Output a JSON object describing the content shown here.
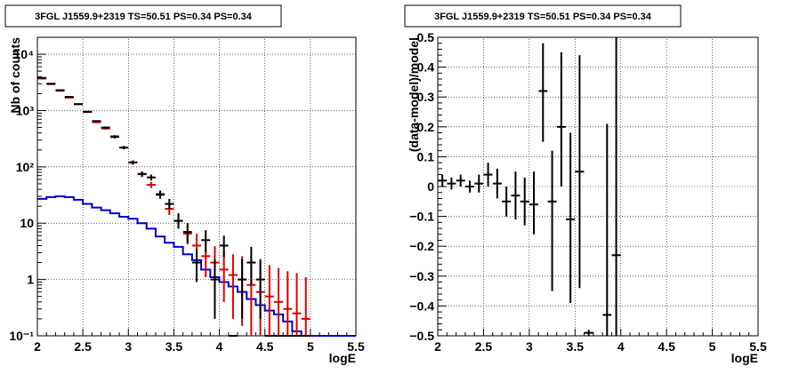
{
  "chart_data": [
    {
      "type": "scatter",
      "title": "3FGL J1559.9+2319 TS=50.51 PS=0.34 PS=0.34",
      "xlabel": "logE",
      "ylabel": "Nb of counts",
      "xlim": [
        2.0,
        5.5
      ],
      "ylim": [
        0.1,
        20000
      ],
      "yscale": "log",
      "grid": true,
      "x_ticks": [
        "2",
        "2.5",
        "3",
        "3.5",
        "4",
        "4.5",
        "5",
        "5.5"
      ],
      "y_ticks": [
        "10⁻¹",
        "1",
        "10",
        "10²",
        "10³",
        "10⁴"
      ],
      "series": [
        {
          "color": "#000000",
          "kind": "data-points",
          "x": [
            2.05,
            2.15,
            2.25,
            2.35,
            2.45,
            2.55,
            2.65,
            2.75,
            2.85,
            2.95,
            3.05,
            3.15,
            3.25,
            3.35,
            3.45,
            3.55,
            3.65,
            3.75,
            3.85,
            3.95,
            4.05,
            4.15,
            4.25,
            4.35,
            4.45,
            4.55,
            4.65,
            4.75,
            4.85,
            4.95
          ],
          "y": [
            3800,
            3000,
            2300,
            1750,
            1300,
            950,
            650,
            500,
            340,
            220,
            120,
            75,
            65,
            32,
            22,
            11,
            7,
            2,
            5,
            1,
            4,
            0.1,
            1,
            2,
            1,
            0.1,
            0.1,
            0.1,
            0.1,
            0.1
          ],
          "ylo": [
            3750,
            2950,
            2250,
            1700,
            1260,
            920,
            625,
            480,
            320,
            205,
            110,
            67,
            57,
            27,
            18,
            8,
            4.5,
            0.9,
            3,
            0.2,
            2.5,
            0.1,
            0.2,
            0.8,
            0.2,
            0.1,
            0.1,
            0.1,
            0.1,
            0.1
          ],
          "yhi": [
            3850,
            3050,
            2350,
            1800,
            1340,
            980,
            675,
            520,
            360,
            235,
            130,
            83,
            73,
            38,
            27,
            15,
            10,
            3.5,
            7.5,
            2.3,
            6,
            0.1,
            2.3,
            3.8,
            2.3,
            0.1,
            0.1,
            0.1,
            0.1,
            0.1
          ]
        },
        {
          "color": "#dd0000",
          "kind": "model-points",
          "x": [
            2.05,
            2.15,
            2.25,
            2.35,
            2.45,
            2.55,
            2.65,
            2.75,
            2.85,
            2.95,
            3.05,
            3.15,
            3.25,
            3.35,
            3.45,
            3.55,
            3.65,
            3.75,
            3.85,
            3.95,
            4.05,
            4.15,
            4.25,
            4.35,
            4.45,
            4.55,
            4.65,
            4.75,
            4.85,
            4.95
          ],
          "y": [
            3700,
            2950,
            2250,
            1700,
            1300,
            950,
            620,
            480,
            350,
            220,
            120,
            74,
            48,
            33,
            18,
            11,
            6.5,
            4,
            2.6,
            2,
            1.5,
            1.2,
            1,
            0.8,
            0.6,
            0.5,
            0.4,
            0.3,
            0.25,
            0.2
          ],
          "ylo": [
            3640,
            2890,
            2200,
            1660,
            1260,
            920,
            600,
            460,
            332,
            206,
            110,
            66,
            42,
            28,
            14,
            8,
            4.2,
            2.2,
            1.1,
            0.7,
            0.4,
            0.2,
            0.15,
            0.1,
            0.1,
            0.1,
            0.1,
            0.1,
            0.1,
            0.1
          ],
          "yhi": [
            3760,
            3010,
            2300,
            1740,
            1340,
            980,
            640,
            500,
            368,
            234,
            130,
            82,
            54,
            38,
            22,
            14,
            9,
            6.5,
            4.8,
            3.9,
            3.2,
            2.8,
            2.6,
            2.3,
            2,
            1.8,
            1.6,
            1.4,
            1.3,
            1.1
          ]
        },
        {
          "color": "#0000cc",
          "kind": "step-line",
          "x": [
            2.0,
            2.1,
            2.2,
            2.3,
            2.4,
            2.5,
            2.6,
            2.7,
            2.8,
            2.9,
            3.0,
            3.1,
            3.2,
            3.3,
            3.4,
            3.5,
            3.6,
            3.7,
            3.8,
            3.9,
            4.0,
            4.1,
            4.2,
            4.3,
            4.4,
            4.5,
            4.6,
            4.7,
            4.8,
            4.9,
            5.0,
            5.5
          ],
          "y": [
            27,
            29,
            30,
            29,
            26,
            22,
            19,
            17,
            15,
            13,
            12,
            10,
            8,
            5.8,
            4.5,
            3.8,
            2.8,
            2.2,
            1.5,
            1.1,
            0.9,
            0.75,
            0.6,
            0.45,
            0.35,
            0.28,
            0.24,
            0.18,
            0.12,
            0.1,
            0.1,
            0.1
          ]
        }
      ]
    },
    {
      "type": "scatter",
      "title": "3FGL J1559.9+2319 TS=50.51 PS=0.34 PS=0.34",
      "xlabel": "logE",
      "ylabel": "(data-model)/model",
      "xlim": [
        2.0,
        5.5
      ],
      "ylim": [
        -0.5,
        0.5
      ],
      "grid": true,
      "x_ticks": [
        "2",
        "2.5",
        "3",
        "3.5",
        "4",
        "4.5",
        "5",
        "5.5"
      ],
      "y_ticks": [
        "−0.5",
        "−0.4",
        "−0.3",
        "−0.2",
        "−0.1",
        "0",
        "0.1",
        "0.2",
        "0.3",
        "0.4",
        "0.5"
      ],
      "series": [
        {
          "color": "#000000",
          "kind": "residuals",
          "x": [
            2.05,
            2.15,
            2.25,
            2.35,
            2.45,
            2.55,
            2.65,
            2.75,
            2.85,
            2.95,
            3.05,
            3.15,
            3.25,
            3.35,
            3.45,
            3.55,
            3.65,
            3.85,
            3.95
          ],
          "y": [
            0.02,
            0.01,
            0.02,
            0.0,
            0.01,
            0.04,
            0.01,
            -0.05,
            -0.03,
            -0.05,
            -0.06,
            0.32,
            -0.05,
            0.2,
            -0.11,
            0.05,
            -0.49,
            -0.43,
            -0.23
          ],
          "ylo": [
            0.0,
            -0.01,
            0.0,
            -0.02,
            -0.02,
            0.0,
            -0.04,
            -0.1,
            -0.11,
            -0.13,
            -0.16,
            0.15,
            -0.35,
            0.0,
            -0.39,
            -0.34,
            -0.5,
            -0.5,
            -0.5
          ],
          "yhi": [
            0.04,
            0.03,
            0.04,
            0.02,
            0.04,
            0.08,
            0.06,
            0.0,
            0.05,
            0.03,
            0.05,
            0.48,
            0.12,
            0.45,
            0.18,
            0.44,
            -0.48,
            0.21,
            0.5
          ]
        }
      ]
    }
  ]
}
